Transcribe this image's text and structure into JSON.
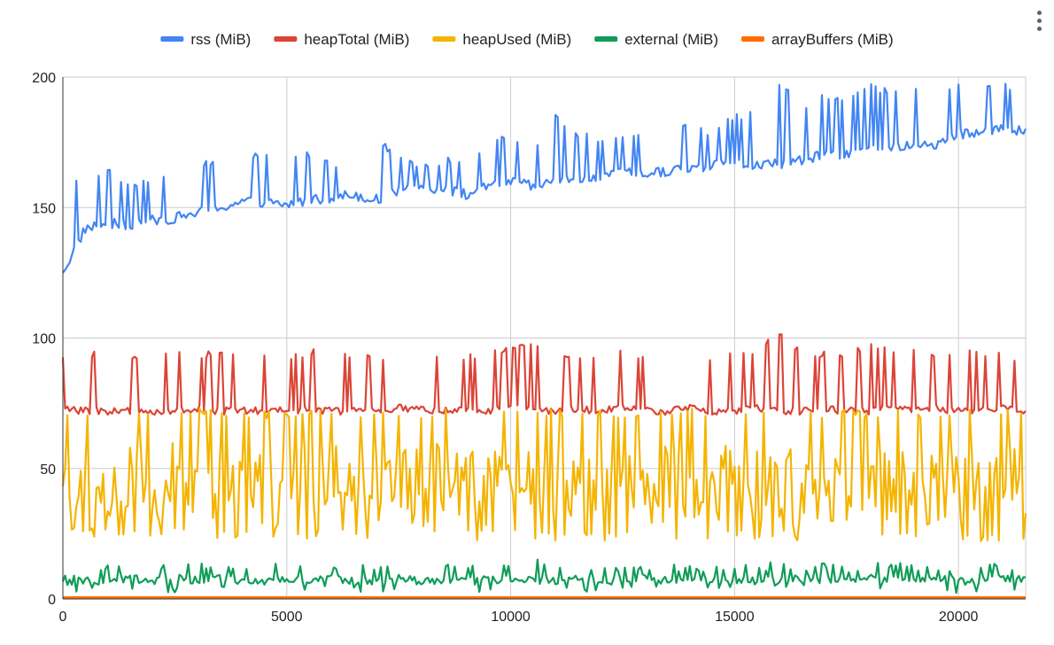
{
  "chart_data": {
    "type": "line",
    "title": "",
    "xlabel": "",
    "ylabel": "",
    "xlim": [
      0,
      21500
    ],
    "ylim": [
      0,
      200
    ],
    "x_ticks": [
      0,
      5000,
      10000,
      15000,
      20000
    ],
    "y_ticks": [
      0,
      50,
      100,
      150,
      200
    ],
    "x_tick_labels": [
      "0",
      "5000",
      "10000",
      "15000",
      "20000"
    ],
    "y_tick_labels": [
      "0",
      "50",
      "100",
      "150",
      "200"
    ],
    "grid": true,
    "legend_position": "top",
    "x": [
      0,
      500,
      1000,
      1500,
      2000,
      2500,
      3000,
      3500,
      4000,
      4500,
      5000,
      5500,
      6000,
      6500,
      7000,
      7500,
      8000,
      8500,
      9000,
      9500,
      10000,
      10500,
      11000,
      11500,
      12000,
      12500,
      13000,
      13500,
      14000,
      14500,
      15000,
      15500,
      16000,
      16500,
      17000,
      17500,
      18000,
      18500,
      19000,
      19500,
      20000,
      20500,
      21000,
      21500
    ],
    "series": [
      {
        "name": "rss (MiB)",
        "color": "#4285f4",
        "values": [
          125,
          142,
          144,
          143,
          145,
          146,
          148,
          150,
          152,
          152,
          151,
          153,
          154,
          155,
          153,
          156,
          158,
          157,
          155,
          158,
          160,
          158,
          160,
          161,
          162,
          163,
          163,
          164,
          165,
          166,
          167,
          166,
          167,
          168,
          170,
          171,
          172,
          173,
          174,
          174,
          178,
          179,
          180,
          179
        ],
        "peaks": [
          164,
          160,
          167,
          160,
          162,
          163,
          168,
          170,
          168,
          173,
          170,
          172,
          168,
          169,
          176,
          172,
          166,
          169,
          170,
          176,
          179,
          174,
          186,
          180,
          178,
          178,
          181,
          182,
          183,
          180,
          186,
          187,
          199,
          190,
          195,
          192,
          199,
          195,
          196,
          194,
          198,
          197,
          198,
          195
        ]
      },
      {
        "name": "heapTotal (MiB)",
        "color": "#db4437",
        "values": [
          73,
          72,
          72,
          72,
          72,
          72,
          73,
          72,
          72,
          72,
          72,
          73,
          72,
          72,
          72,
          73,
          73,
          72,
          72,
          72,
          73,
          72,
          72,
          73,
          72,
          73,
          72,
          72,
          73,
          72,
          72,
          73,
          72,
          72,
          73,
          72,
          72,
          73,
          72,
          73,
          72,
          72,
          73,
          72
        ],
        "peaks": [
          95,
          94,
          96,
          95,
          94,
          96,
          94,
          96,
          95,
          94,
          93,
          96,
          95,
          94,
          94,
          96,
          90,
          95,
          94,
          96,
          98,
          100,
          95,
          95,
          94,
          96,
          94,
          93,
          95,
          94,
          95,
          96,
          104,
          96,
          95,
          94,
          100,
          95,
          96,
          94,
          96,
          95,
          95,
          92
        ]
      },
      {
        "name": "heapUsed (MiB)",
        "color": "#f4b400",
        "values": [
          45,
          40,
          42,
          44,
          40,
          46,
          42,
          45,
          43,
          41,
          44,
          42,
          45,
          43,
          40,
          44,
          42,
          46,
          41,
          43,
          45,
          42,
          44,
          41,
          43,
          45,
          42,
          44,
          40,
          43,
          45,
          42,
          44,
          41,
          43,
          45,
          42,
          44,
          40,
          43,
          45,
          42,
          44,
          41
        ],
        "lows": [
          24,
          23,
          24,
          23,
          22,
          24,
          23,
          22,
          24,
          23,
          24,
          22,
          23,
          24,
          22,
          23,
          22,
          24,
          23,
          22,
          24,
          23,
          22,
          23,
          22,
          24,
          22,
          23,
          23,
          22,
          24,
          22,
          23,
          22,
          24,
          23,
          22,
          23,
          22,
          24,
          23,
          22,
          22,
          23
        ],
        "peaks": [
          71,
          73,
          72,
          73,
          73,
          72,
          73,
          73,
          72,
          72,
          72,
          73,
          73,
          72,
          73,
          73,
          72,
          73,
          72,
          73,
          72,
          73,
          73,
          72,
          73,
          72,
          73,
          72,
          73,
          73,
          72,
          73,
          72,
          73,
          72,
          73,
          72,
          73,
          72,
          72,
          73,
          72,
          73,
          72
        ]
      },
      {
        "name": "external (MiB)",
        "color": "#0f9d58",
        "values": [
          8,
          7,
          7,
          8,
          7,
          8,
          7,
          8,
          7,
          7,
          8,
          7,
          8,
          7,
          7,
          8,
          7,
          7,
          8,
          7,
          8,
          7,
          7,
          8,
          7,
          7,
          8,
          7,
          8,
          7,
          7,
          8,
          7,
          8,
          7,
          7,
          8,
          7,
          8,
          7,
          8,
          7,
          8,
          7
        ],
        "lows": [
          2,
          2,
          3,
          2,
          3,
          2,
          3,
          2,
          3,
          2,
          3,
          3,
          2,
          3,
          2,
          3,
          5,
          3,
          2,
          3,
          2,
          3,
          2,
          3,
          2,
          3,
          2,
          3,
          2,
          3,
          2,
          3,
          2,
          3,
          2,
          3,
          2,
          3,
          2,
          3,
          2,
          3,
          2,
          3
        ],
        "peaks": [
          15,
          13,
          14,
          13,
          15,
          13,
          14,
          15,
          14,
          13,
          14,
          13,
          15,
          13,
          14,
          13,
          12,
          13,
          14,
          13,
          15,
          17,
          14,
          13,
          14,
          13,
          14,
          13,
          14,
          13,
          14,
          13,
          15,
          13,
          14,
          13,
          14,
          15,
          14,
          13,
          14,
          13,
          14,
          13
        ]
      },
      {
        "name": "arrayBuffers (MiB)",
        "color": "#ff6d01",
        "values": [
          0.5,
          0.5,
          0.5,
          0.5,
          0.5,
          0.5,
          0.5,
          0.5,
          0.5,
          0.5,
          0.5,
          0.5,
          0.5,
          0.5,
          0.5,
          0.5,
          0.5,
          0.5,
          0.5,
          0.5,
          0.5,
          0.5,
          0.5,
          0.5,
          0.5,
          0.5,
          0.5,
          0.5,
          0.5,
          0.5,
          0.5,
          0.5,
          0.5,
          0.5,
          0.5,
          0.5,
          0.5,
          0.5,
          0.5,
          0.5,
          0.5,
          0.5,
          0.5,
          0.5
        ]
      }
    ]
  },
  "menu": {
    "icon": "more-vert-icon"
  }
}
